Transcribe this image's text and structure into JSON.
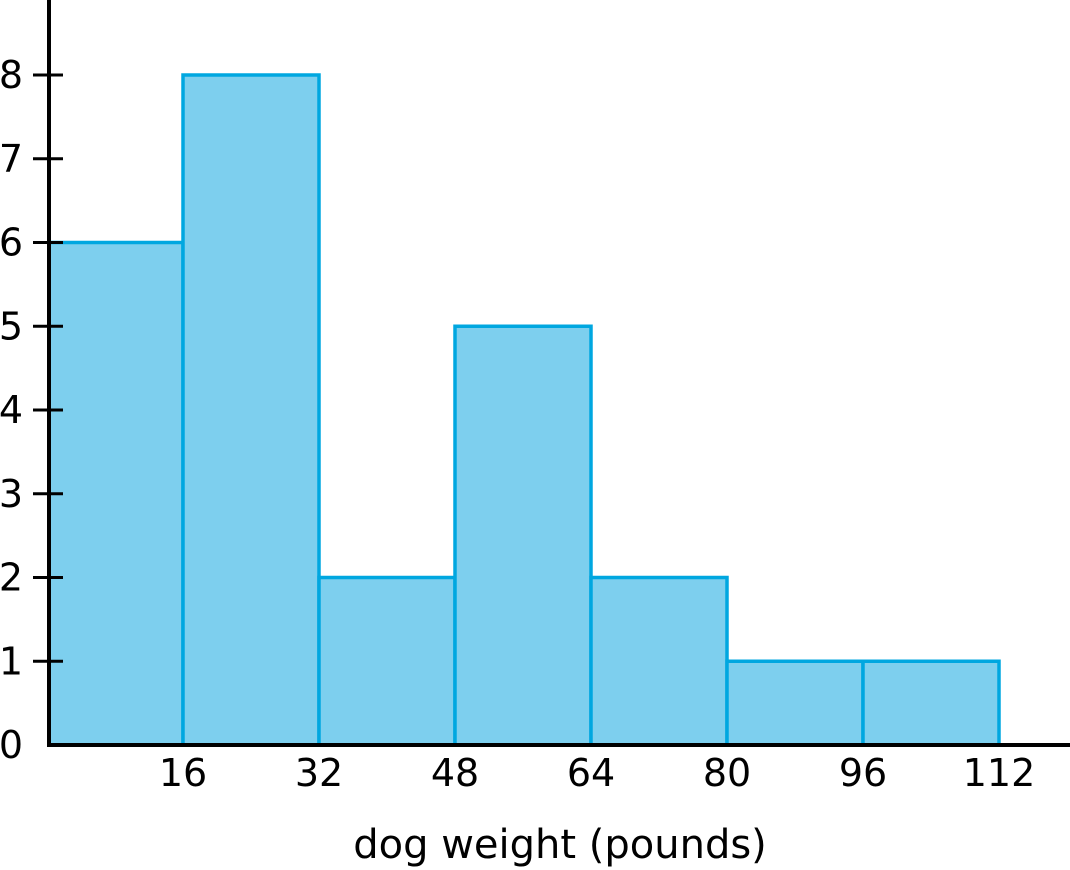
{
  "chart_data": {
    "type": "bar",
    "title": "",
    "xlabel": "dog weight (pounds)",
    "ylabel": "",
    "bins": [
      [
        0,
        16
      ],
      [
        16,
        32
      ],
      [
        32,
        48
      ],
      [
        48,
        64
      ],
      [
        64,
        80
      ],
      [
        80,
        96
      ],
      [
        96,
        112
      ]
    ],
    "values": [
      6,
      8,
      2,
      5,
      2,
      1,
      1
    ],
    "x_ticks": [
      "16",
      "32",
      "48",
      "64",
      "80",
      "96",
      "112"
    ],
    "x_tick_values": [
      16,
      32,
      48,
      64,
      80,
      96,
      112
    ],
    "y_ticks": [
      "0",
      "1",
      "2",
      "3",
      "4",
      "5",
      "6",
      "7",
      "8"
    ],
    "y_tick_values": [
      0,
      1,
      2,
      3,
      4,
      5,
      6,
      7,
      8
    ],
    "xlim": [
      0,
      120
    ],
    "ylim": [
      0,
      8.9
    ],
    "grid": false,
    "colors": {
      "bar_fill": "#7dcfee",
      "bar_stroke": "#00a7e0",
      "axis": "#000000"
    }
  }
}
